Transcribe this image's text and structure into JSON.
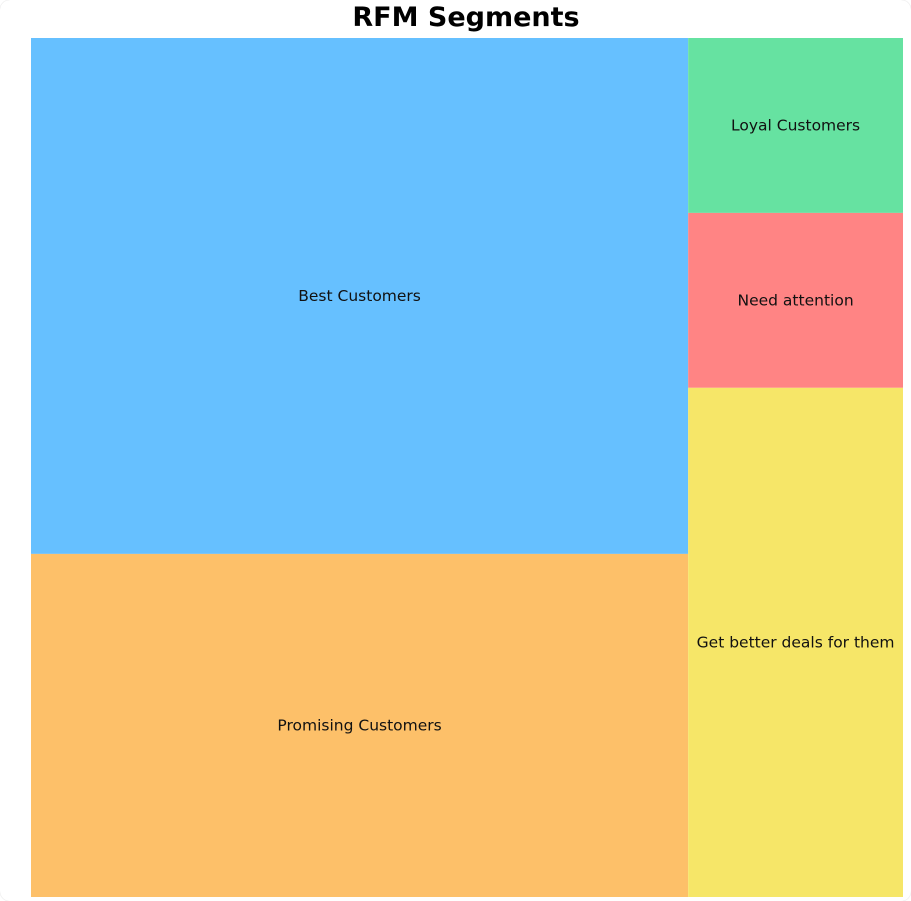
{
  "chart_data": {
    "type": "treemap",
    "title": "RFM Segments",
    "segments": [
      {
        "label": "Best Customers",
        "value": 40.6,
        "color": "#66c0ff"
      },
      {
        "label": "Promising Customers",
        "value": 27.0,
        "color": "#fdc069"
      },
      {
        "label": "Loyal Customers",
        "value": 4.5,
        "color": "#66e2a1"
      },
      {
        "label": "Need attention",
        "value": 4.5,
        "color": "#ff8484"
      },
      {
        "label": "Get better deals for them",
        "value": 13.1,
        "color": "#f6e668"
      }
    ]
  }
}
